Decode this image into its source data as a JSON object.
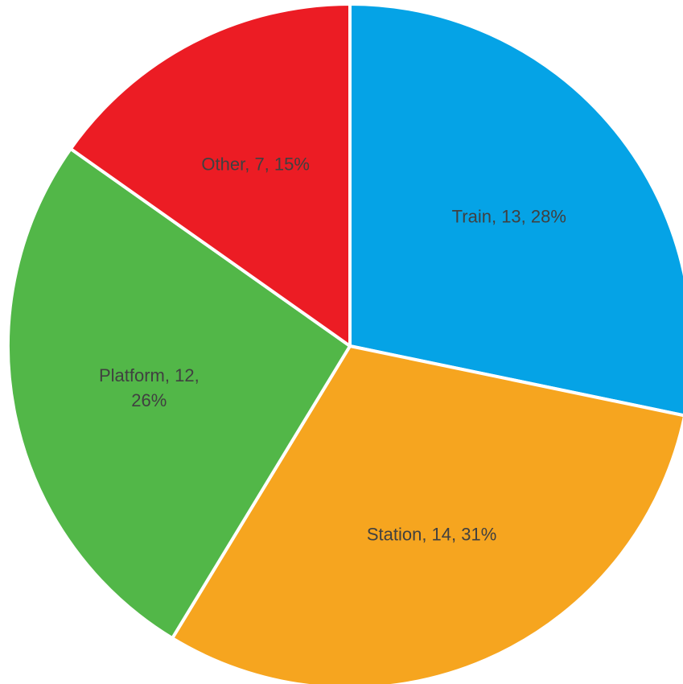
{
  "chart_data": {
    "type": "pie",
    "values": [
      13,
      14,
      12,
      7
    ],
    "value_labels": [
      "Train, 13, 28%",
      "Station, 14, 31%",
      "Platform, 12, 26%",
      "Other, 7, 15%"
    ],
    "colors": [
      "#05a3e6",
      "#f6a51f",
      "#52b748",
      "#ec1c24"
    ]
  }
}
